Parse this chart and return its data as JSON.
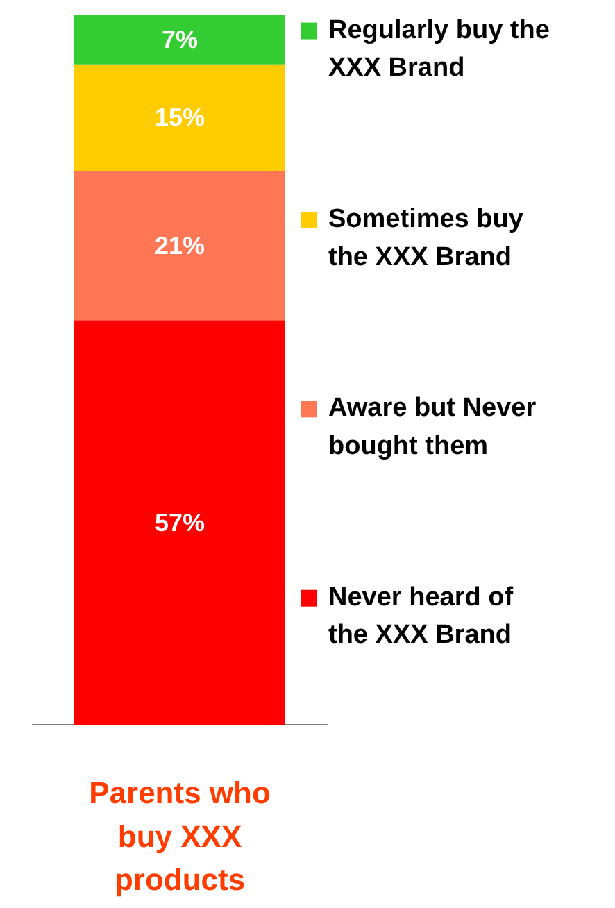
{
  "chart_data": {
    "type": "bar",
    "stacked": true,
    "categories": [
      "Parents who\nbuy XXX\nproducts"
    ],
    "series": [
      {
        "name": "Never heard of\nthe XXX Brand",
        "color": "#ff0000",
        "values": [
          57
        ],
        "value_labels": [
          "57%"
        ]
      },
      {
        "name": "Aware but Never\nbought them",
        "color": "#ff7755",
        "values": [
          21
        ],
        "value_labels": [
          "21%"
        ]
      },
      {
        "name": "Sometimes buy\nthe XXX Brand",
        "color": "#ffcc00",
        "values": [
          15
        ],
        "value_labels": [
          "15%"
        ]
      },
      {
        "name": "Regularly buy the\nXXX Brand",
        "color": "#33cc33",
        "values": [
          7
        ],
        "value_labels": [
          "7%"
        ]
      }
    ],
    "legend": "right",
    "tick_labels": "x"
  }
}
